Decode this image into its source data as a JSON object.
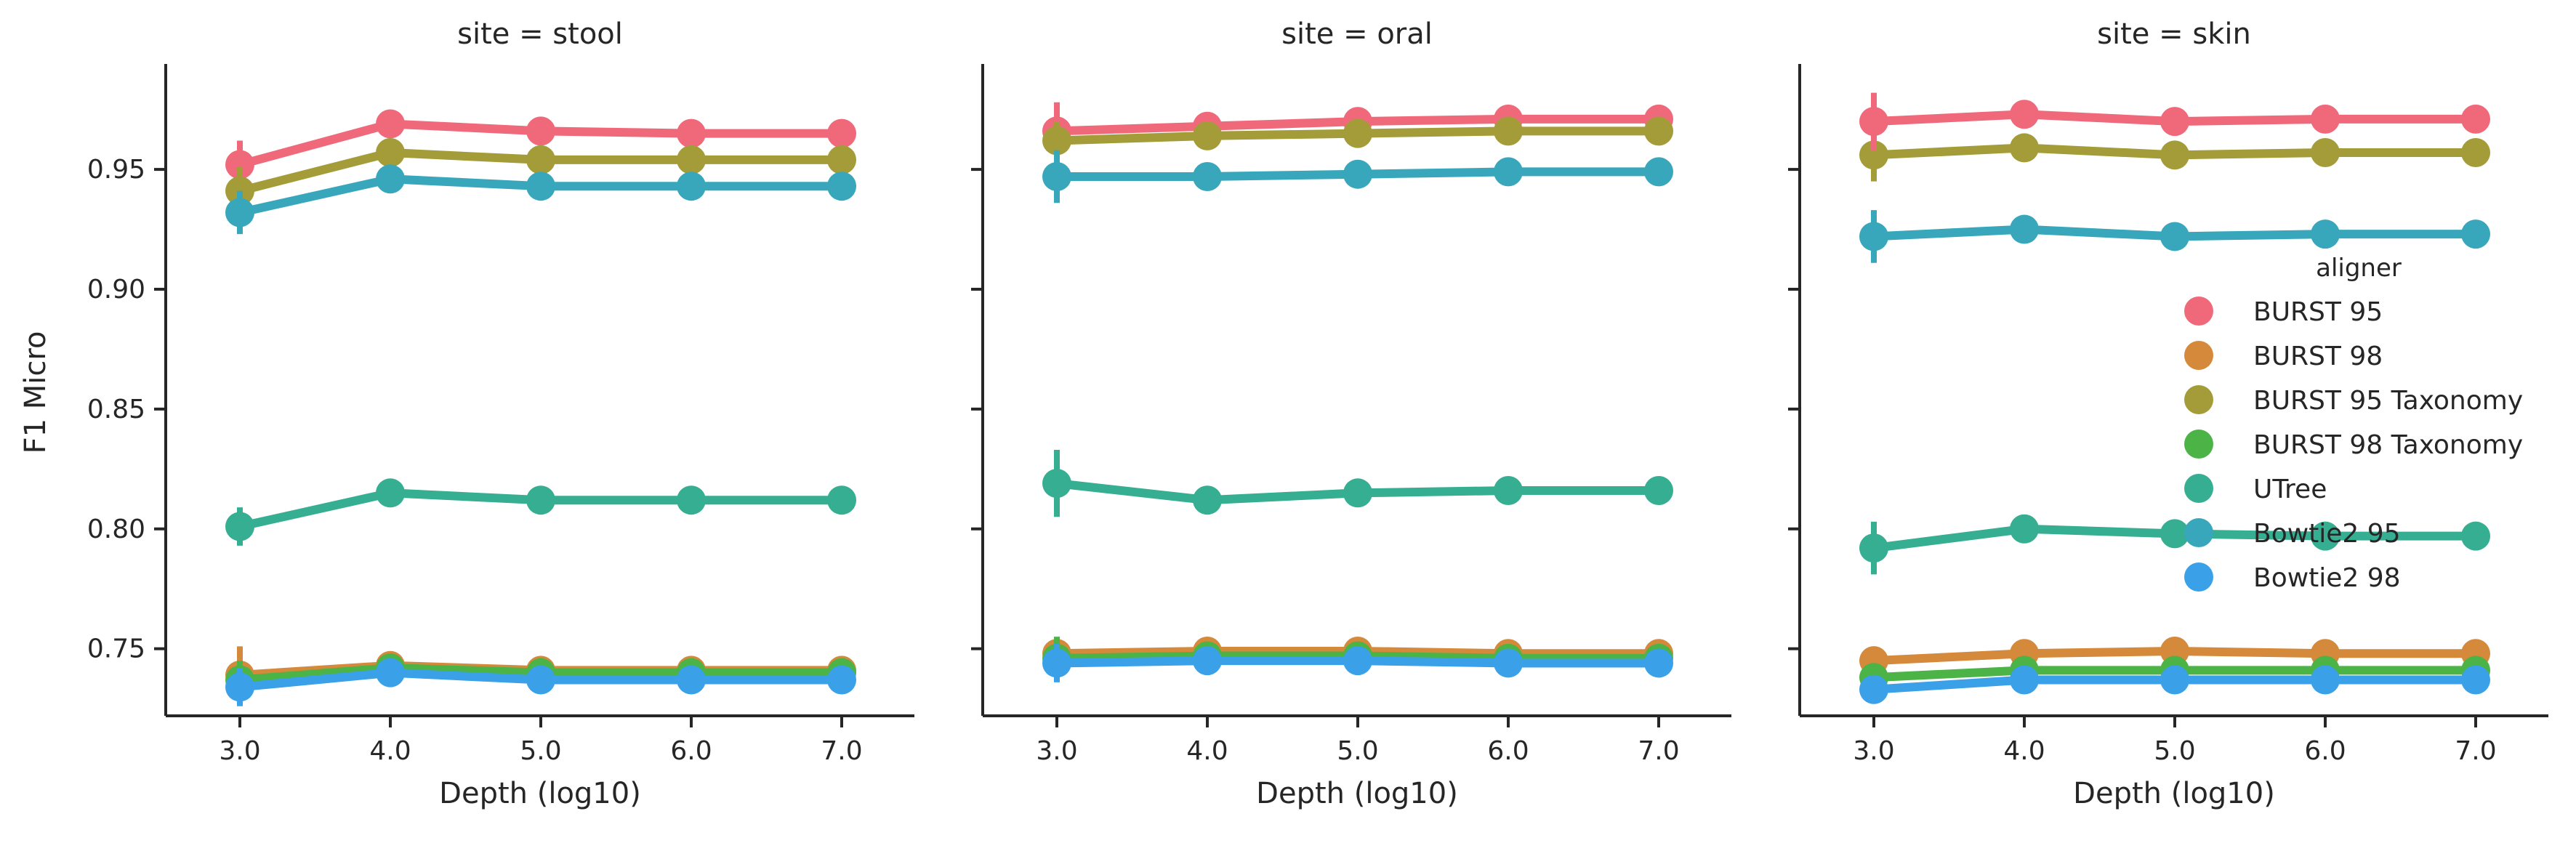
{
  "chart_data": {
    "type": "line",
    "facet_prefix": "site = ",
    "ylabel": "F1 Micro",
    "xlabel": "Depth (log10)",
    "x_ticks": [
      "3.0",
      "4.0",
      "5.0",
      "6.0",
      "7.0"
    ],
    "x_values": [
      3,
      4,
      5,
      6,
      7
    ],
    "ylim": [
      0.722,
      0.994
    ],
    "y_ticks": [
      0.75,
      0.8,
      0.85,
      0.9,
      0.95
    ],
    "y_tick_labels": [
      "0.75",
      "0.80",
      "0.85",
      "0.90",
      "0.95"
    ],
    "grid": false,
    "legend": {
      "title": "aligner",
      "placement": "right (inside last panel)",
      "entries": [
        {
          "name": "BURST 95",
          "color": "#f0697a"
        },
        {
          "name": "BURST 98",
          "color": "#d5893a"
        },
        {
          "name": "BURST 95 Taxonomy",
          "color": "#a39c38"
        },
        {
          "name": "BURST 98 Taxonomy",
          "color": "#4cb446"
        },
        {
          "name": "UTree",
          "color": "#36ae91"
        },
        {
          "name": "Bowtie2 95",
          "color": "#39a7bb"
        },
        {
          "name": "Bowtie2 98",
          "color": "#3aa0e8"
        }
      ]
    },
    "panels": [
      {
        "site": "stool",
        "title": "site = stool",
        "series": [
          {
            "name": "BURST 98",
            "color": "#d5893a",
            "values": [
              0.739,
              0.743,
              0.741,
              0.741,
              0.741
            ],
            "err": [
              0.012,
              0,
              0,
              0,
              0
            ]
          },
          {
            "name": "BURST 98 Taxonomy",
            "color": "#4cb446",
            "values": [
              0.737,
              0.742,
              0.74,
              0.74,
              0.74
            ],
            "err": [
              0.008,
              0,
              0,
              0,
              0
            ]
          },
          {
            "name": "Bowtie2 98",
            "color": "#3aa0e8",
            "values": [
              0.734,
              0.74,
              0.737,
              0.737,
              0.737
            ],
            "err": [
              0.008,
              0,
              0,
              0,
              0
            ]
          },
          {
            "name": "UTree",
            "color": "#36ae91",
            "values": [
              0.801,
              0.815,
              0.812,
              0.812,
              0.812
            ],
            "err": [
              0.008,
              0,
              0,
              0,
              0
            ]
          },
          {
            "name": "BURST 95",
            "color": "#f0697a",
            "values": [
              0.952,
              0.969,
              0.966,
              0.965,
              0.965
            ],
            "err": [
              0.01,
              0,
              0,
              0,
              0
            ]
          },
          {
            "name": "BURST 95 Taxonomy",
            "color": "#a39c38",
            "values": [
              0.941,
              0.957,
              0.954,
              0.954,
              0.954
            ],
            "err": [
              0.01,
              0,
              0,
              0,
              0
            ]
          },
          {
            "name": "Bowtie2 95",
            "color": "#39a7bb",
            "values": [
              0.932,
              0.946,
              0.943,
              0.943,
              0.943
            ],
            "err": [
              0.009,
              0,
              0,
              0,
              0
            ]
          }
        ]
      },
      {
        "site": "oral",
        "title": "site = oral",
        "series": [
          {
            "name": "BURST 98",
            "color": "#d5893a",
            "values": [
              0.748,
              0.749,
              0.749,
              0.748,
              0.748
            ],
            "err": [
              0.006,
              0,
              0,
              0,
              0
            ]
          },
          {
            "name": "BURST 98 Taxonomy",
            "color": "#4cb446",
            "values": [
              0.746,
              0.747,
              0.747,
              0.746,
              0.746
            ],
            "err": [
              0.009,
              0,
              0,
              0,
              0
            ]
          },
          {
            "name": "Bowtie2 98",
            "color": "#3aa0e8",
            "values": [
              0.744,
              0.745,
              0.745,
              0.744,
              0.744
            ],
            "err": [
              0.008,
              0,
              0,
              0,
              0
            ]
          },
          {
            "name": "UTree",
            "color": "#36ae91",
            "values": [
              0.819,
              0.812,
              0.815,
              0.816,
              0.816
            ],
            "err": [
              0.014,
              0,
              0,
              0,
              0
            ]
          },
          {
            "name": "BURST 95",
            "color": "#f0697a",
            "values": [
              0.966,
              0.968,
              0.97,
              0.971,
              0.971
            ],
            "err": [
              0.012,
              0,
              0,
              0,
              0
            ]
          },
          {
            "name": "BURST 95 Taxonomy",
            "color": "#a39c38",
            "values": [
              0.962,
              0.964,
              0.965,
              0.966,
              0.966
            ],
            "err": [
              0.008,
              0,
              0,
              0,
              0
            ]
          },
          {
            "name": "Bowtie2 95",
            "color": "#39a7bb",
            "values": [
              0.947,
              0.947,
              0.948,
              0.949,
              0.949
            ],
            "err": [
              0.011,
              0,
              0,
              0,
              0
            ]
          }
        ]
      },
      {
        "site": "skin",
        "title": "site = skin",
        "series": [
          {
            "name": "BURST 98",
            "color": "#d5893a",
            "values": [
              0.745,
              0.748,
              0.749,
              0.748,
              0.748
            ],
            "err": [
              0.004,
              0,
              0,
              0,
              0
            ]
          },
          {
            "name": "BURST 98 Taxonomy",
            "color": "#4cb446",
            "values": [
              0.738,
              0.741,
              0.741,
              0.741,
              0.741
            ],
            "err": [
              0.004,
              0,
              0,
              0,
              0
            ]
          },
          {
            "name": "Bowtie2 98",
            "color": "#3aa0e8",
            "values": [
              0.733,
              0.737,
              0.737,
              0.737,
              0.737
            ],
            "err": [
              0.004,
              0,
              0,
              0,
              0
            ]
          },
          {
            "name": "UTree",
            "color": "#36ae91",
            "values": [
              0.792,
              0.8,
              0.798,
              0.797,
              0.797
            ],
            "err": [
              0.011,
              0,
              0,
              0,
              0
            ]
          },
          {
            "name": "Bowtie2 95",
            "color": "#39a7bb",
            "values": [
              0.922,
              0.925,
              0.922,
              0.923,
              0.923
            ],
            "err": [
              0.011,
              0,
              0,
              0,
              0
            ]
          },
          {
            "name": "BURST 95 Taxonomy",
            "color": "#a39c38",
            "values": [
              0.956,
              0.959,
              0.956,
              0.957,
              0.957
            ],
            "err": [
              0.011,
              0,
              0,
              0,
              0
            ]
          },
          {
            "name": "BURST 95",
            "color": "#f0697a",
            "values": [
              0.97,
              0.973,
              0.97,
              0.971,
              0.971
            ],
            "err": [
              0.012,
              0,
              0,
              0,
              0
            ]
          }
        ]
      }
    ]
  }
}
